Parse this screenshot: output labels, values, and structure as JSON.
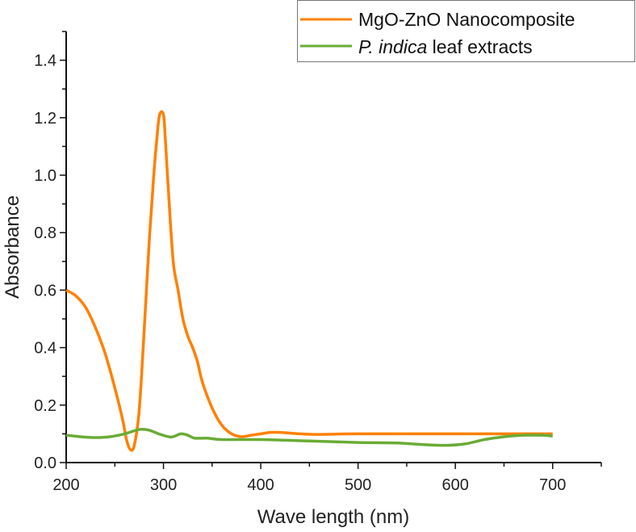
{
  "chart_data": {
    "type": "line",
    "title": "",
    "xlabel": "Wave length (nm)",
    "ylabel": "Absorbance",
    "xlim": [
      200,
      750
    ],
    "ylim": [
      0,
      1.5
    ],
    "xticks": [
      "200",
      "300",
      "400",
      "500",
      "600",
      "700"
    ],
    "xtick_values": [
      200,
      300,
      400,
      500,
      600,
      700
    ],
    "yticks": [
      "0.0",
      "0.2",
      "0.4",
      "0.6",
      "0.8",
      "1.0",
      "1.2",
      "1.4"
    ],
    "ytick_values": [
      0,
      0.2,
      0.4,
      0.6,
      0.8,
      1.0,
      1.2,
      1.4
    ],
    "grid": false,
    "legend_position": "top-right",
    "series": [
      {
        "name": "MgO-ZnO Nanocomposite",
        "legend_plain": "MgO-ZnO Nanocomposite",
        "color": "#ff8000",
        "x": [
          200,
          210,
          220,
          230,
          240,
          250,
          258,
          262,
          266,
          270,
          275,
          280,
          285,
          290,
          293,
          296,
          300,
          302,
          305,
          310,
          315,
          320,
          325,
          330,
          335,
          340,
          350,
          360,
          370,
          380,
          390,
          400,
          410,
          420,
          440,
          460,
          500,
          600,
          700
        ],
        "y": [
          0.6,
          0.58,
          0.54,
          0.47,
          0.38,
          0.26,
          0.15,
          0.08,
          0.045,
          0.06,
          0.18,
          0.45,
          0.75,
          1.0,
          1.12,
          1.21,
          1.21,
          1.12,
          0.95,
          0.7,
          0.6,
          0.5,
          0.44,
          0.4,
          0.35,
          0.28,
          0.19,
          0.13,
          0.1,
          0.09,
          0.095,
          0.1,
          0.105,
          0.105,
          0.1,
          0.098,
          0.1,
          0.1,
          0.1
        ]
      },
      {
        "name": "P. indica leaf extracts",
        "legend_italic": "P. indica",
        "legend_plain": " leaf extracts",
        "color": "#6aab35",
        "x": [
          200,
          215,
          230,
          245,
          260,
          275,
          285,
          295,
          305,
          310,
          318,
          325,
          332,
          345,
          360,
          400,
          450,
          500,
          540,
          570,
          590,
          610,
          630,
          650,
          670,
          690,
          700
        ],
        "y": [
          0.095,
          0.09,
          0.087,
          0.09,
          0.1,
          0.115,
          0.113,
          0.1,
          0.09,
          0.09,
          0.1,
          0.095,
          0.085,
          0.085,
          0.08,
          0.08,
          0.075,
          0.07,
          0.068,
          0.062,
          0.06,
          0.065,
          0.08,
          0.09,
          0.095,
          0.095,
          0.092
        ]
      }
    ]
  }
}
